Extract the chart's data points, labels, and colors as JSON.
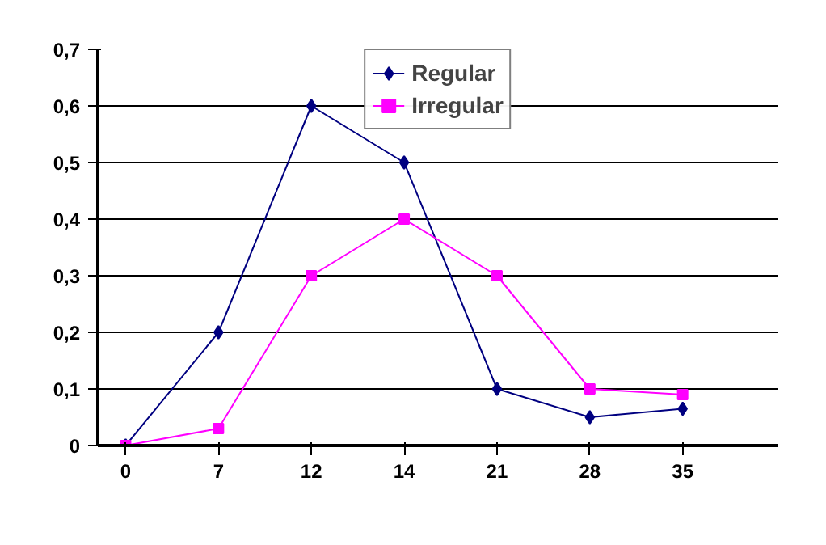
{
  "chart_data": {
    "type": "line",
    "categories": [
      "0",
      "7",
      "12",
      "14",
      "21",
      "28",
      "35"
    ],
    "series": [
      {
        "name": "Regular",
        "color": "#000080",
        "marker": "diamond",
        "values": [
          0,
          0.2,
          0.6,
          0.5,
          0.1,
          0.05,
          0.065
        ]
      },
      {
        "name": "Irregular",
        "color": "#ff00ff",
        "marker": "square",
        "values": [
          0,
          0.03,
          0.3,
          0.4,
          0.3,
          0.1,
          0.09
        ]
      }
    ],
    "ylim": [
      0,
      0.7
    ],
    "yticks": [
      0,
      {
        "value": 0.1,
        "label": "0,1"
      },
      {
        "value": 0.2,
        "label": "0,2"
      },
      {
        "value": 0.3,
        "label": "0,3"
      },
      {
        "value": 0.4,
        "label": "0,4"
      },
      {
        "value": 0.5,
        "label": "0,5"
      },
      {
        "value": 0.6,
        "label": "0,6"
      },
      {
        "value": 0.7,
        "label": "0,7"
      }
    ],
    "grid": "y",
    "legend": "top"
  }
}
